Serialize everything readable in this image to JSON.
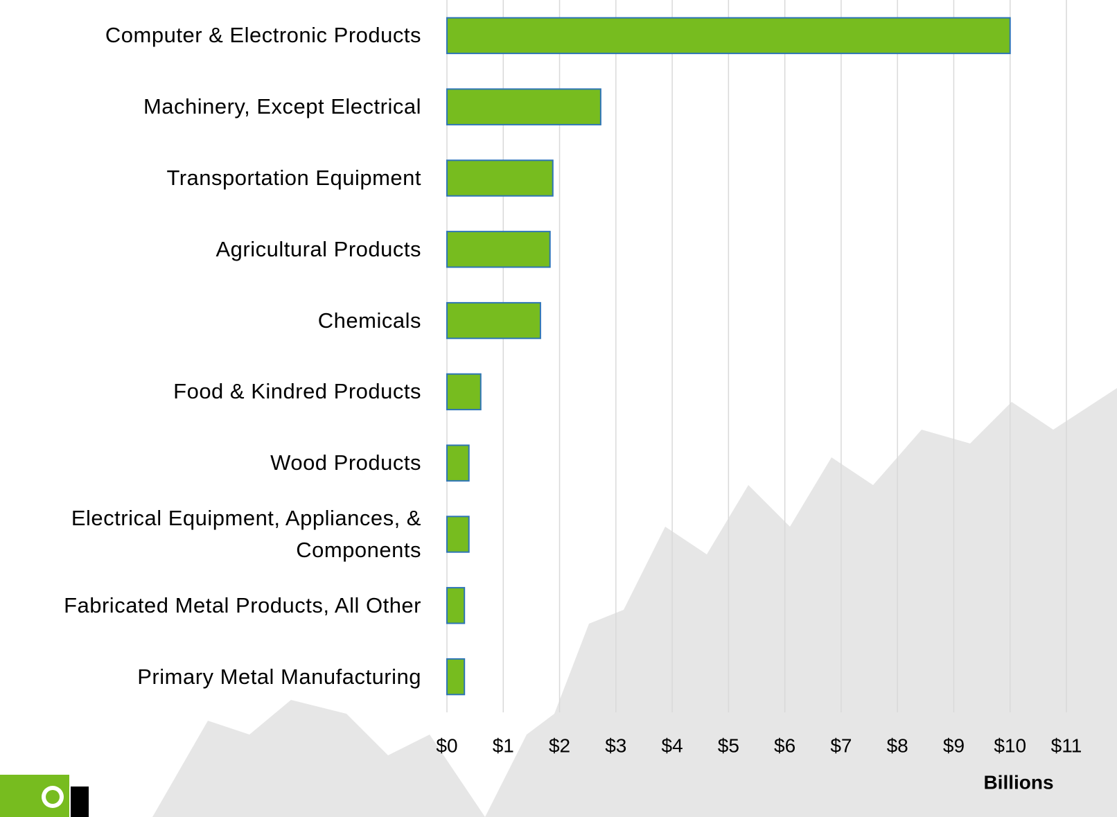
{
  "chart_data": {
    "type": "bar",
    "orientation": "horizontal",
    "categories": [
      "Computer & Electronic Products",
      "Machinery, Except Electrical",
      "Transportation Equipment",
      "Agricultural Products",
      "Chemicals",
      "Food & Kindred Products",
      "Wood Products",
      "Electrical Equipment, Appliances, & Components",
      "Fabricated Metal Products, All Other",
      "Primary Metal Manufacturing"
    ],
    "values": [
      10.0,
      2.73,
      1.88,
      1.83,
      1.66,
      0.6,
      0.39,
      0.39,
      0.31,
      0.31
    ],
    "color": "#77bc1f",
    "edge_color": "#2e75b6",
    "xlabel": "Billions",
    "xlim": [
      0,
      11
    ],
    "xticks": [
      {
        "value": 0,
        "label": "$0"
      },
      {
        "value": 1,
        "label": "$1"
      },
      {
        "value": 2,
        "label": "$2"
      },
      {
        "value": 3,
        "label": "$3"
      },
      {
        "value": 4,
        "label": "$4"
      },
      {
        "value": 5,
        "label": "$5"
      },
      {
        "value": 6,
        "label": "$6"
      },
      {
        "value": 7,
        "label": "$7"
      },
      {
        "value": 8,
        "label": "$8"
      },
      {
        "value": 9,
        "label": "$9"
      },
      {
        "value": 10,
        "label": "$10"
      },
      {
        "value": 11,
        "label": "$11"
      }
    ],
    "grid": true
  }
}
